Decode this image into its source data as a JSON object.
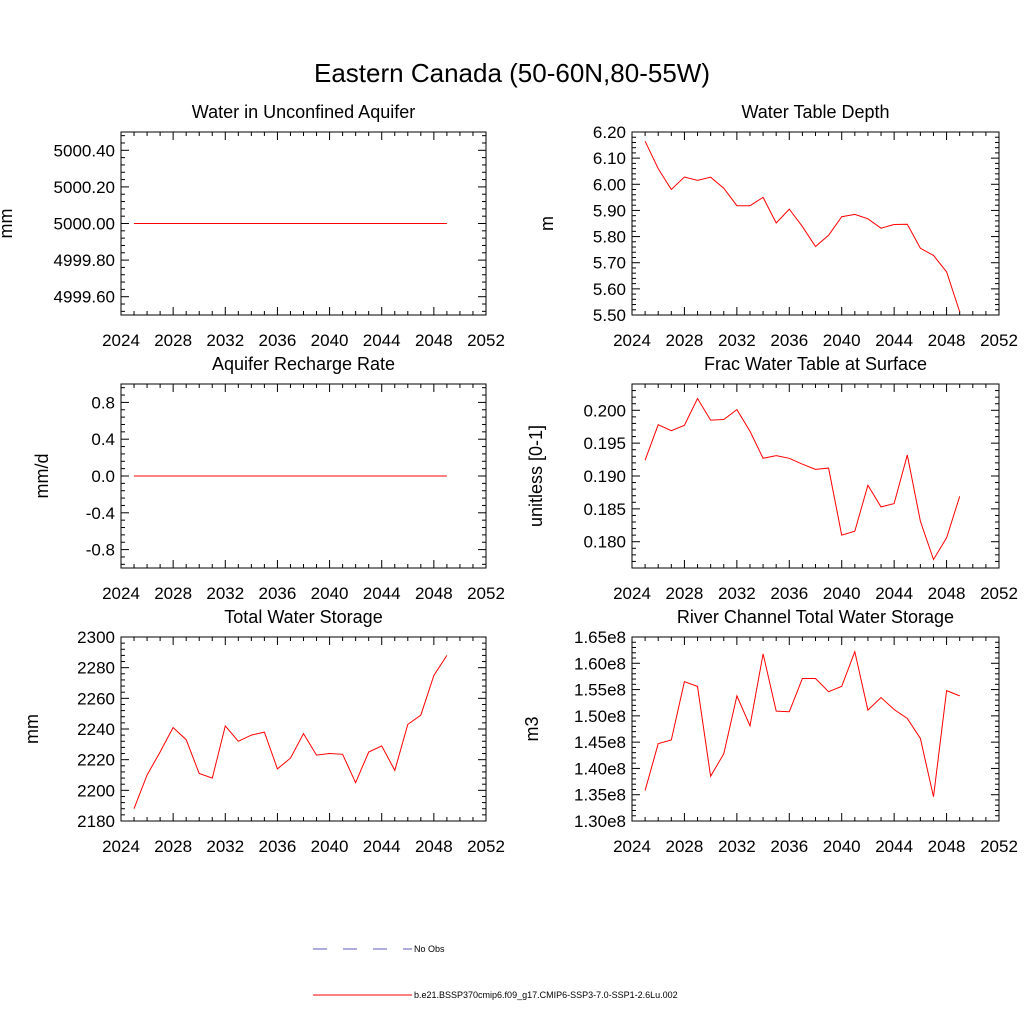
{
  "figure": {
    "title": "Eastern Canada (50-60N,80-55W)"
  },
  "legend": [
    {
      "label": "No Obs",
      "color": "#5b5bbd",
      "dash": true
    },
    {
      "label": "b.e21.BSSP370cmip6.f09_g17.CMIP6-SSP3-7.0-SSP1-2.6Lu.002",
      "color": "#ff0000",
      "dash": false
    }
  ],
  "chart_data": [
    {
      "type": "line",
      "title": "Water in Unconfined Aquifer",
      "ylabel": "mm",
      "xlim": [
        2024,
        2052
      ],
      "xticks": [
        2024,
        2028,
        2032,
        2036,
        2040,
        2044,
        2048,
        2052
      ],
      "ylim": [
        4999.5,
        5000.5
      ],
      "yticks": [
        4999.6,
        4999.8,
        5000.0,
        5000.2,
        5000.4
      ],
      "ytick_labels": [
        "4999.60",
        "4999.80",
        "5000.00",
        "5000.20",
        "5000.40"
      ],
      "x": [
        2025,
        2026,
        2027,
        2028,
        2029,
        2030,
        2031,
        2032,
        2033,
        2034,
        2035,
        2036,
        2037,
        2038,
        2039,
        2040,
        2041,
        2042,
        2043,
        2044,
        2045,
        2046,
        2047,
        2048,
        2049
      ],
      "series": [
        {
          "color": "#ff0000",
          "values": [
            5000,
            5000,
            5000,
            5000,
            5000,
            5000,
            5000,
            5000,
            5000,
            5000,
            5000,
            5000,
            5000,
            5000,
            5000,
            5000,
            5000,
            5000,
            5000,
            5000,
            5000,
            5000,
            5000,
            5000,
            5000
          ]
        }
      ]
    },
    {
      "type": "line",
      "title": "Water Table Depth",
      "ylabel": "m",
      "xlim": [
        2024,
        2052
      ],
      "xticks": [
        2024,
        2028,
        2032,
        2036,
        2040,
        2044,
        2048,
        2052
      ],
      "ylim": [
        5.5,
        6.2
      ],
      "yticks": [
        5.5,
        5.6,
        5.7,
        5.8,
        5.9,
        6.0,
        6.1,
        6.2
      ],
      "ytick_labels": [
        "5.50",
        "5.60",
        "5.70",
        "5.80",
        "5.90",
        "6.00",
        "6.10",
        "6.20"
      ],
      "x": [
        2025,
        2026,
        2027,
        2028,
        2029,
        2030,
        2031,
        2032,
        2033,
        2034,
        2035,
        2036,
        2037,
        2038,
        2039,
        2040,
        2041,
        2042,
        2043,
        2044,
        2045,
        2046,
        2047,
        2048,
        2049
      ],
      "series": [
        {
          "color": "#ff0000",
          "values": [
            6.165,
            6.06,
            5.98,
            6.028,
            6.015,
            6.027,
            5.985,
            5.918,
            5.918,
            5.95,
            5.852,
            5.905,
            5.838,
            5.762,
            5.805,
            5.876,
            5.885,
            5.868,
            5.832,
            5.846,
            5.847,
            5.755,
            5.728,
            5.665,
            5.512
          ]
        }
      ]
    },
    {
      "type": "line",
      "title": "Aquifer Recharge Rate",
      "ylabel": "mm/d",
      "xlim": [
        2024,
        2052
      ],
      "xticks": [
        2024,
        2028,
        2032,
        2036,
        2040,
        2044,
        2048,
        2052
      ],
      "ylim": [
        -1.0,
        1.0
      ],
      "yticks": [
        -0.8,
        -0.4,
        0.0,
        0.4,
        0.8
      ],
      "ytick_labels": [
        "-0.8",
        "-0.4",
        "0.0",
        "0.4",
        "0.8"
      ],
      "x": [
        2025,
        2026,
        2027,
        2028,
        2029,
        2030,
        2031,
        2032,
        2033,
        2034,
        2035,
        2036,
        2037,
        2038,
        2039,
        2040,
        2041,
        2042,
        2043,
        2044,
        2045,
        2046,
        2047,
        2048,
        2049
      ],
      "series": [
        {
          "color": "#ff0000",
          "values": [
            0,
            0,
            0,
            0,
            0,
            0,
            0,
            0,
            0,
            0,
            0,
            0,
            0,
            0,
            0,
            0,
            0,
            0,
            0,
            0,
            0,
            0,
            0,
            0,
            0
          ]
        }
      ]
    },
    {
      "type": "line",
      "title": "Frac Water Table at Surface",
      "ylabel": "unitless [0-1]",
      "xlim": [
        2024,
        2052
      ],
      "xticks": [
        2024,
        2028,
        2032,
        2036,
        2040,
        2044,
        2048,
        2052
      ],
      "ylim": [
        0.176,
        0.204
      ],
      "yticks": [
        0.18,
        0.185,
        0.19,
        0.195,
        0.2
      ],
      "ytick_labels": [
        "0.180",
        "0.185",
        "0.190",
        "0.195",
        "0.200"
      ],
      "x": [
        2025,
        2026,
        2027,
        2028,
        2029,
        2030,
        2031,
        2032,
        2033,
        2034,
        2035,
        2036,
        2037,
        2038,
        2039,
        2040,
        2041,
        2042,
        2043,
        2044,
        2045,
        2046,
        2047,
        2048,
        2049
      ],
      "series": [
        {
          "color": "#ff0000",
          "values": [
            0.1924,
            0.1978,
            0.1969,
            0.1977,
            0.2018,
            0.1985,
            0.1986,
            0.2001,
            0.1968,
            0.1927,
            0.1931,
            0.1927,
            0.1918,
            0.191,
            0.1912,
            0.181,
            0.1816,
            0.1886,
            0.1853,
            0.1858,
            0.1932,
            0.1831,
            0.1773,
            0.1806,
            0.1869
          ]
        }
      ]
    },
    {
      "type": "line",
      "title": "Total Water Storage",
      "ylabel": "mm",
      "xlim": [
        2024,
        2052
      ],
      "xticks": [
        2024,
        2028,
        2032,
        2036,
        2040,
        2044,
        2048,
        2052
      ],
      "ylim": [
        2180,
        2300
      ],
      "yticks": [
        2180,
        2200,
        2220,
        2240,
        2260,
        2280,
        2300
      ],
      "ytick_labels": [
        "2180",
        "2200",
        "2220",
        "2240",
        "2260",
        "2280",
        "2300"
      ],
      "x": [
        2025,
        2026,
        2027,
        2028,
        2029,
        2030,
        2031,
        2032,
        2033,
        2034,
        2035,
        2036,
        2037,
        2038,
        2039,
        2040,
        2041,
        2042,
        2043,
        2044,
        2045,
        2046,
        2047,
        2048,
        2049
      ],
      "series": [
        {
          "color": "#ff0000",
          "values": [
            2188,
            2210,
            2225,
            2241,
            2233,
            2211,
            2208,
            2242,
            2232,
            2236,
            2238,
            2214,
            2221,
            2237,
            2223,
            2224,
            2223.5,
            2205,
            2225,
            2229,
            2213,
            2243,
            2249,
            2275,
            2288
          ]
        }
      ]
    },
    {
      "type": "line",
      "title": "River Channel Total Water Storage",
      "ylabel": "m3",
      "xlim": [
        2024,
        2052
      ],
      "xticks": [
        2024,
        2028,
        2032,
        2036,
        2040,
        2044,
        2048,
        2052
      ],
      "ylim": [
        130000000.0,
        165000000.0
      ],
      "yticks": [
        130000000.0,
        135000000.0,
        140000000.0,
        145000000.0,
        150000000.0,
        155000000.0,
        160000000.0,
        165000000.0
      ],
      "ytick_labels": [
        "1.30e8",
        "1.35e8",
        "1.40e8",
        "1.45e8",
        "1.50e8",
        "1.55e8",
        "1.60e8",
        "1.65e8"
      ],
      "x": [
        2025,
        2026,
        2027,
        2028,
        2029,
        2030,
        2031,
        2032,
        2033,
        2034,
        2035,
        2036,
        2037,
        2038,
        2039,
        2040,
        2041,
        2042,
        2043,
        2044,
        2045,
        2046,
        2047,
        2048,
        2049
      ],
      "series": [
        {
          "color": "#ff0000",
          "values": [
            135800000.0,
            144700000.0,
            145400000.0,
            156500000.0,
            155600000.0,
            138500000.0,
            142800000.0,
            153800000.0,
            148100000.0,
            161800000.0,
            150900000.0,
            150800000.0,
            157100000.0,
            157100000.0,
            154600000.0,
            155600000.0,
            162200000.0,
            151100000.0,
            153500000.0,
            151200000.0,
            149500000.0,
            145700000.0,
            134600000.0,
            154800000.0,
            153800000.0
          ]
        }
      ]
    }
  ]
}
